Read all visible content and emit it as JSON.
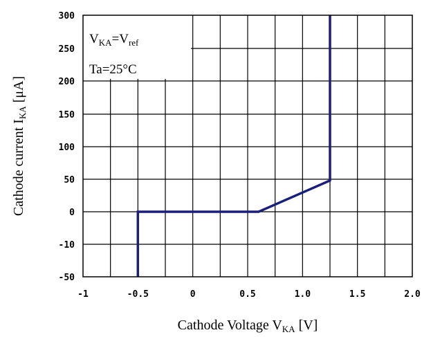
{
  "chart_data": {
    "type": "line",
    "xlabel": {
      "main": "Cathode Voltage V",
      "sub": "KA",
      "tail": " [V]"
    },
    "ylabel": {
      "main": "Cathode current I",
      "sub": "KA",
      "tail": " [μA]"
    },
    "xlim": [
      -1,
      2
    ],
    "ylim": [
      -50,
      300
    ],
    "x_ticks": [
      {
        "value": -1,
        "label": "-1"
      },
      {
        "value": -0.5,
        "label": "-0.5"
      },
      {
        "value": 0,
        "label": "0"
      },
      {
        "value": 0.5,
        "label": "0.5"
      },
      {
        "value": 1.0,
        "label": "1.0"
      },
      {
        "value": 1.5,
        "label": "1.5"
      },
      {
        "value": 2.0,
        "label": "2.0"
      }
    ],
    "y_ticks": [
      {
        "value": -50,
        "label": "-50"
      },
      {
        "value": -10,
        "label": "-10"
      },
      {
        "value": 0,
        "label": "0"
      },
      {
        "value": 50,
        "label": "50"
      },
      {
        "value": 100,
        "label": "100"
      },
      {
        "value": 150,
        "label": "150"
      },
      {
        "value": 200,
        "label": "200"
      },
      {
        "value": 250,
        "label": "250"
      },
      {
        "value": 300,
        "label": "300"
      }
    ],
    "grid": true,
    "conditions": [
      {
        "main": "V",
        "sub": "KA",
        "mid": "=V",
        "sub2": "ref"
      },
      {
        "main": "Ta=25°C",
        "sub": "",
        "mid": "",
        "sub2": ""
      }
    ],
    "series": [
      {
        "color": "#1a1f7a",
        "points": [
          {
            "x": -0.5,
            "y": -50
          },
          {
            "x": -0.5,
            "y": 0
          },
          {
            "x": 0.6,
            "y": 0
          },
          {
            "x": 1.25,
            "y": 48
          },
          {
            "x": 1.25,
            "y": 300
          }
        ]
      }
    ]
  }
}
